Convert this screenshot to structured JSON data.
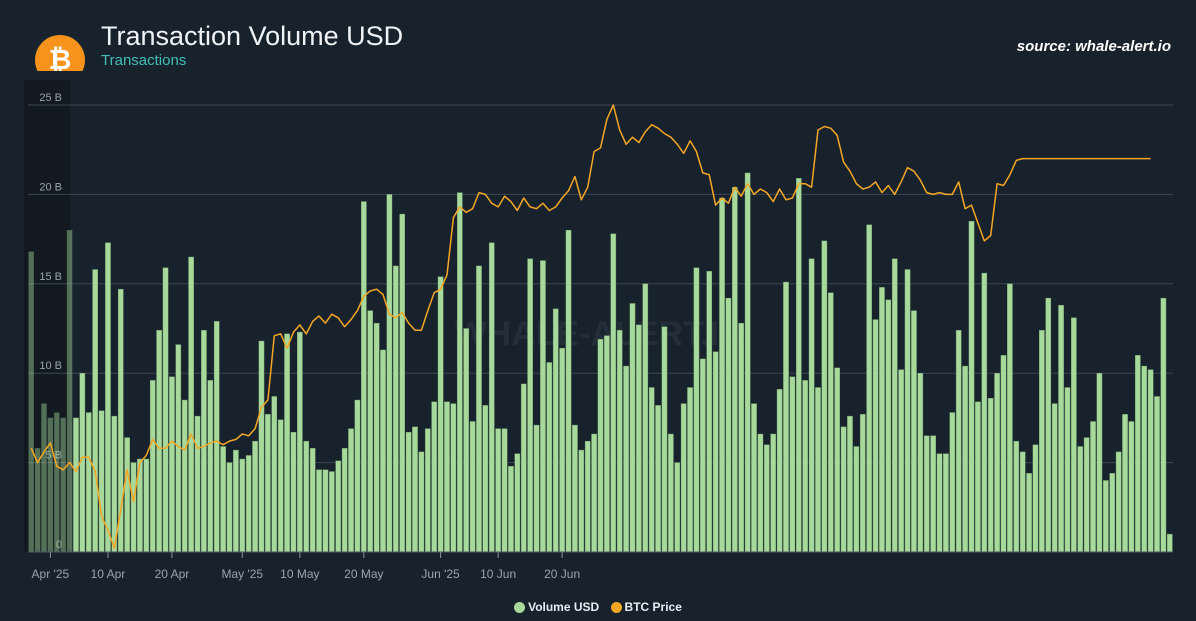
{
  "header": {
    "title": "Transaction Volume USD",
    "subtitle": "Transactions",
    "source": "source: whale-alert.io",
    "watermark": "WHALE-ALERT.IO"
  },
  "logo": {
    "icon": "bitcoin-icon",
    "color": "#f7931a"
  },
  "colors": {
    "bars": "#a8d99c",
    "bars_stroke": "#6f9e67",
    "line": "#f5a623",
    "grid": "#3a4652",
    "background": "#18222d",
    "axis_text": "#9aa4ae"
  },
  "chart_data": {
    "type": "bar",
    "grid": true,
    "legend_position": "bottom",
    "y_axis": {
      "min": 0,
      "max": 25,
      "unit": "B",
      "ticks": [
        "0",
        "5 B",
        "10 B",
        "15 B",
        "20 B",
        "25 B"
      ]
    },
    "x_axis": {
      "start_date": "2025-03-29",
      "end_date": "2025-06-27",
      "ticks": [
        {
          "label": "Apr '25",
          "date": "2025-04-01"
        },
        {
          "label": "10 Apr",
          "date": "2025-04-10"
        },
        {
          "label": "20 Apr",
          "date": "2025-04-20"
        },
        {
          "label": "May '25",
          "date": "2025-05-01"
        },
        {
          "label": "10 May",
          "date": "2025-05-10"
        },
        {
          "label": "20 May",
          "date": "2025-05-20"
        },
        {
          "label": "Jun '25",
          "date": "2025-06-01"
        },
        {
          "label": "10 Jun",
          "date": "2025-06-10"
        },
        {
          "label": "20 Jun",
          "date": "2025-06-20"
        }
      ]
    },
    "series": [
      {
        "name": "Volume USD",
        "type": "bar",
        "values_billion": [
          16.8,
          5.8,
          8.3,
          7.5,
          7.8,
          7.5,
          18.0,
          7.5,
          10.0,
          7.8,
          15.8,
          7.9,
          17.3,
          7.6,
          14.7,
          6.4,
          5.0,
          5.2,
          5.2,
          9.6,
          12.4,
          15.9,
          9.8,
          11.6,
          8.5,
          16.5,
          7.6,
          12.4,
          9.6,
          12.9,
          5.9,
          5.0,
          5.7,
          5.2,
          5.4,
          6.2,
          11.8,
          7.7,
          8.7,
          7.4,
          12.2,
          6.7,
          12.3,
          6.2,
          5.8,
          4.6,
          4.6,
          4.5,
          5.1,
          5.8,
          6.9,
          8.5,
          19.6,
          13.5,
          12.8,
          11.3,
          20.0,
          16.0,
          18.9,
          6.7,
          7.0,
          5.6,
          6.9,
          8.4,
          15.4,
          8.4,
          8.3,
          20.1,
          12.5,
          7.3,
          16.0,
          8.2,
          17.3,
          6.9,
          6.9,
          4.8,
          5.5,
          9.4,
          16.4,
          7.1,
          16.3,
          10.6,
          13.6,
          11.4,
          18.0,
          7.1,
          5.7,
          6.2,
          6.6,
          11.9,
          12.1,
          17.8,
          12.4,
          10.4,
          13.9,
          12.7,
          15.0,
          9.2,
          8.2,
          12.6,
          6.6,
          5.0,
          8.3,
          9.2,
          15.9,
          10.8,
          15.7,
          11.2,
          19.8,
          14.2,
          20.4,
          12.8,
          21.2,
          8.3,
          6.6,
          6.0,
          6.6,
          9.1,
          15.1,
          9.8,
          20.9,
          9.6,
          16.4,
          9.2,
          17.4,
          14.5,
          10.3,
          7.0,
          7.6,
          5.9,
          7.7,
          18.3,
          13.0,
          14.8,
          14.1,
          16.4,
          10.2,
          15.8,
          13.5,
          10.0,
          6.5,
          6.5,
          5.5,
          5.5,
          7.8,
          12.4,
          10.4,
          18.5,
          8.4,
          15.6,
          8.6,
          10.0,
          11.0,
          15.0,
          6.2,
          5.6,
          4.4,
          6.0,
          12.4,
          14.2,
          8.3,
          13.8,
          9.2,
          13.1,
          5.9,
          6.4,
          7.3,
          10.0,
          4.0,
          4.4,
          5.6,
          7.7,
          7.3,
          11.0,
          10.4,
          10.2,
          8.7,
          14.2,
          1.0
        ]
      },
      {
        "name": "BTC Price",
        "type": "line",
        "values_billion_scale": [
          5.8,
          5.0,
          5.6,
          6.1,
          4.8,
          4.6,
          5.0,
          4.5,
          5.3,
          5.3,
          4.5,
          2.0,
          1.2,
          0.2,
          2.4,
          4.6,
          2.8,
          5.0,
          5.4,
          6.3,
          5.8,
          5.8,
          6.2,
          5.9,
          5.7,
          6.6,
          5.8,
          5.9,
          6.1,
          6.2,
          6.0,
          6.2,
          6.3,
          6.6,
          6.5,
          6.9,
          8.1,
          8.5,
          12.1,
          12.2,
          11.4,
          12.3,
          12.7,
          12.2,
          12.9,
          13.2,
          12.8,
          13.3,
          13.1,
          12.6,
          13.0,
          13.5,
          14.3,
          14.6,
          14.7,
          14.4,
          13.3,
          13.1,
          13.4,
          12.8,
          12.4,
          12.4,
          13.5,
          14.5,
          14.7,
          15.5,
          18.7,
          19.3,
          19.0,
          19.2,
          20.1,
          20.0,
          19.5,
          19.3,
          19.9,
          19.6,
          19.1,
          19.8,
          19.3,
          19.2,
          19.5,
          19.1,
          19.3,
          19.8,
          20.2,
          21.0,
          19.7,
          20.4,
          22.4,
          22.6,
          24.2,
          25.0,
          23.6,
          22.8,
          23.2,
          22.9,
          23.5,
          23.9,
          23.7,
          23.4,
          23.2,
          22.8,
          22.3,
          23.0,
          22.4,
          21.2,
          21.1,
          19.4,
          19.8,
          19.5,
          20.4,
          19.9,
          20.6,
          20.0,
          20.3,
          20.1,
          19.6,
          20.3,
          19.7,
          19.8,
          20.6,
          20.6,
          20.4,
          23.6,
          23.8,
          23.7,
          23.3,
          21.8,
          21.3,
          20.6,
          20.3,
          20.4,
          20.7,
          20.1,
          20.5,
          20.0,
          20.7,
          21.5,
          21.3,
          20.8,
          20.1,
          20.0,
          20.1,
          20.0,
          20.0,
          20.7,
          19.2,
          19.4,
          18.4,
          17.4,
          17.7,
          20.6,
          20.5,
          21.1,
          21.9,
          22.0,
          22.0,
          22.0,
          22.0,
          22.0,
          22.0,
          22.0,
          22.0,
          22.0,
          22.0,
          22.0,
          22.0,
          22.0,
          22.0,
          22.0,
          22.0,
          22.0,
          22.0,
          22.0,
          22.0,
          22.0
        ]
      }
    ]
  }
}
